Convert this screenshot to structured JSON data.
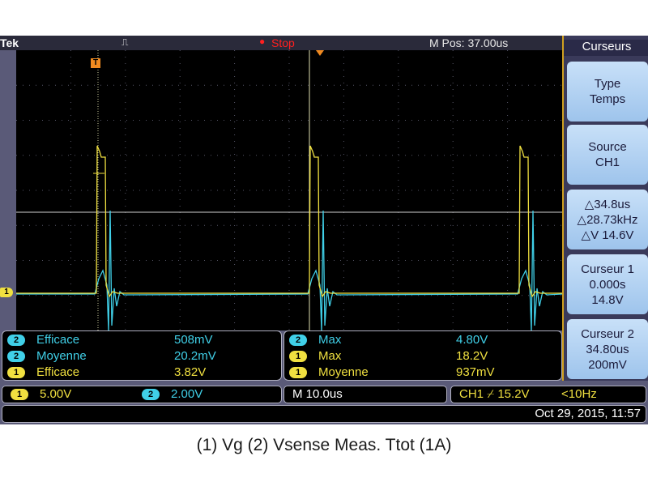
{
  "header": {
    "brand": "Tek",
    "trigger_symbol": "⎍",
    "acq_dot": "●",
    "status": "Stop",
    "m_pos": "M Pos: 37.00us"
  },
  "markers": {
    "cursor_t": "T",
    "ch1_ground": "1"
  },
  "menu": {
    "title": "Curseurs",
    "buttons": [
      {
        "lines": [
          "Type",
          "Temps"
        ]
      },
      {
        "lines": [
          "Source",
          "CH1"
        ]
      },
      {
        "lines": [
          "△34.8us",
          "△28.73kHz",
          "△V 14.6V"
        ]
      },
      {
        "lines": [
          "Curseur 1",
          "0.000s",
          "14.8V"
        ]
      },
      {
        "lines": [
          "Curseur 2",
          "34.80us",
          "200mV"
        ]
      }
    ]
  },
  "measurements": {
    "left": [
      {
        "ch": "2",
        "name": "Efficace",
        "value": "508mV"
      },
      {
        "ch": "2",
        "name": "Moyenne",
        "value": "20.2mV"
      },
      {
        "ch": "1",
        "name": "Efficace",
        "value": "3.82V"
      }
    ],
    "right": [
      {
        "ch": "2",
        "name": "Max",
        "value": "4.80V"
      },
      {
        "ch": "1",
        "name": "Max",
        "value": "18.2V"
      },
      {
        "ch": "1",
        "name": "Moyenne",
        "value": "937mV"
      }
    ]
  },
  "status": {
    "ch1_label": "1",
    "ch1_scale": "5.00V",
    "ch2_label": "2",
    "ch2_scale": "2.00V",
    "timebase": "M 10.0us",
    "trigger": "CH1 ⌿ 15.2V",
    "freq": "<10Hz",
    "datetime": "Oct 29, 2015, 11:57"
  },
  "caption": "(1) Vg (2) Vsense Meas. Ttot (1A)",
  "colors": {
    "ch1": "#f0e040",
    "ch2": "#40d0e8",
    "graticule_bg": "#000000",
    "frame": "#5a5a78",
    "cursor_marker": "#f08a20"
  }
}
